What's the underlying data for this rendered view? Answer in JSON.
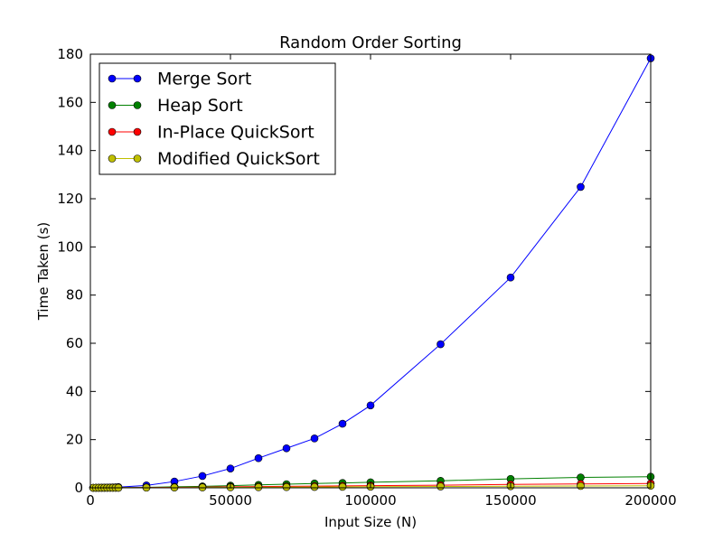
{
  "chart_data": {
    "type": "line",
    "title": "Random Order Sorting",
    "xlabel": "Input Size (N)",
    "ylabel": "Time Taken (s)",
    "xlim": [
      0,
      200000
    ],
    "ylim": [
      0,
      180
    ],
    "xticks": [
      0,
      50000,
      100000,
      150000,
      200000
    ],
    "yticks": [
      0,
      20,
      40,
      60,
      80,
      100,
      120,
      140,
      160,
      180
    ],
    "grid": false,
    "legend_position": "top-left",
    "x": [
      1000,
      2000,
      3000,
      4000,
      5000,
      6000,
      7000,
      8000,
      9000,
      10000,
      20000,
      30000,
      40000,
      50000,
      60000,
      70000,
      80000,
      90000,
      100000,
      125000,
      150000,
      175000,
      200000
    ],
    "series": [
      {
        "name": "Merge Sort",
        "color": "#0000ff",
        "values": [
          0.0,
          0.01,
          0.02,
          0.04,
          0.06,
          0.09,
          0.12,
          0.15,
          0.2,
          0.3,
          1.0,
          2.6,
          4.9,
          8.0,
          12.3,
          16.4,
          20.5,
          26.6,
          34.2,
          59.6,
          87.3,
          124.9,
          178.3
        ]
      },
      {
        "name": "Heap Sort",
        "color": "#008000",
        "values": [
          0.0,
          0.01,
          0.01,
          0.02,
          0.03,
          0.04,
          0.05,
          0.06,
          0.07,
          0.08,
          0.2,
          0.4,
          0.6,
          0.9,
          1.2,
          1.5,
          1.8,
          2.0,
          2.3,
          2.9,
          3.7,
          4.3,
          4.6
        ]
      },
      {
        "name": "In-Place QuickSort",
        "color": "#ff0000",
        "values": [
          0.0,
          0.0,
          0.01,
          0.01,
          0.01,
          0.02,
          0.02,
          0.02,
          0.03,
          0.03,
          0.1,
          0.2,
          0.3,
          0.4,
          0.5,
          0.6,
          0.7,
          0.8,
          0.9,
          1.1,
          1.4,
          1.6,
          1.8
        ]
      },
      {
        "name": "Modified QuickSort",
        "color": "#bfbf00",
        "values": [
          0.0,
          0.0,
          0.0,
          0.01,
          0.01,
          0.01,
          0.01,
          0.02,
          0.02,
          0.02,
          0.05,
          0.1,
          0.15,
          0.2,
          0.25,
          0.3,
          0.35,
          0.4,
          0.45,
          0.55,
          0.65,
          0.75,
          0.85
        ]
      }
    ]
  }
}
